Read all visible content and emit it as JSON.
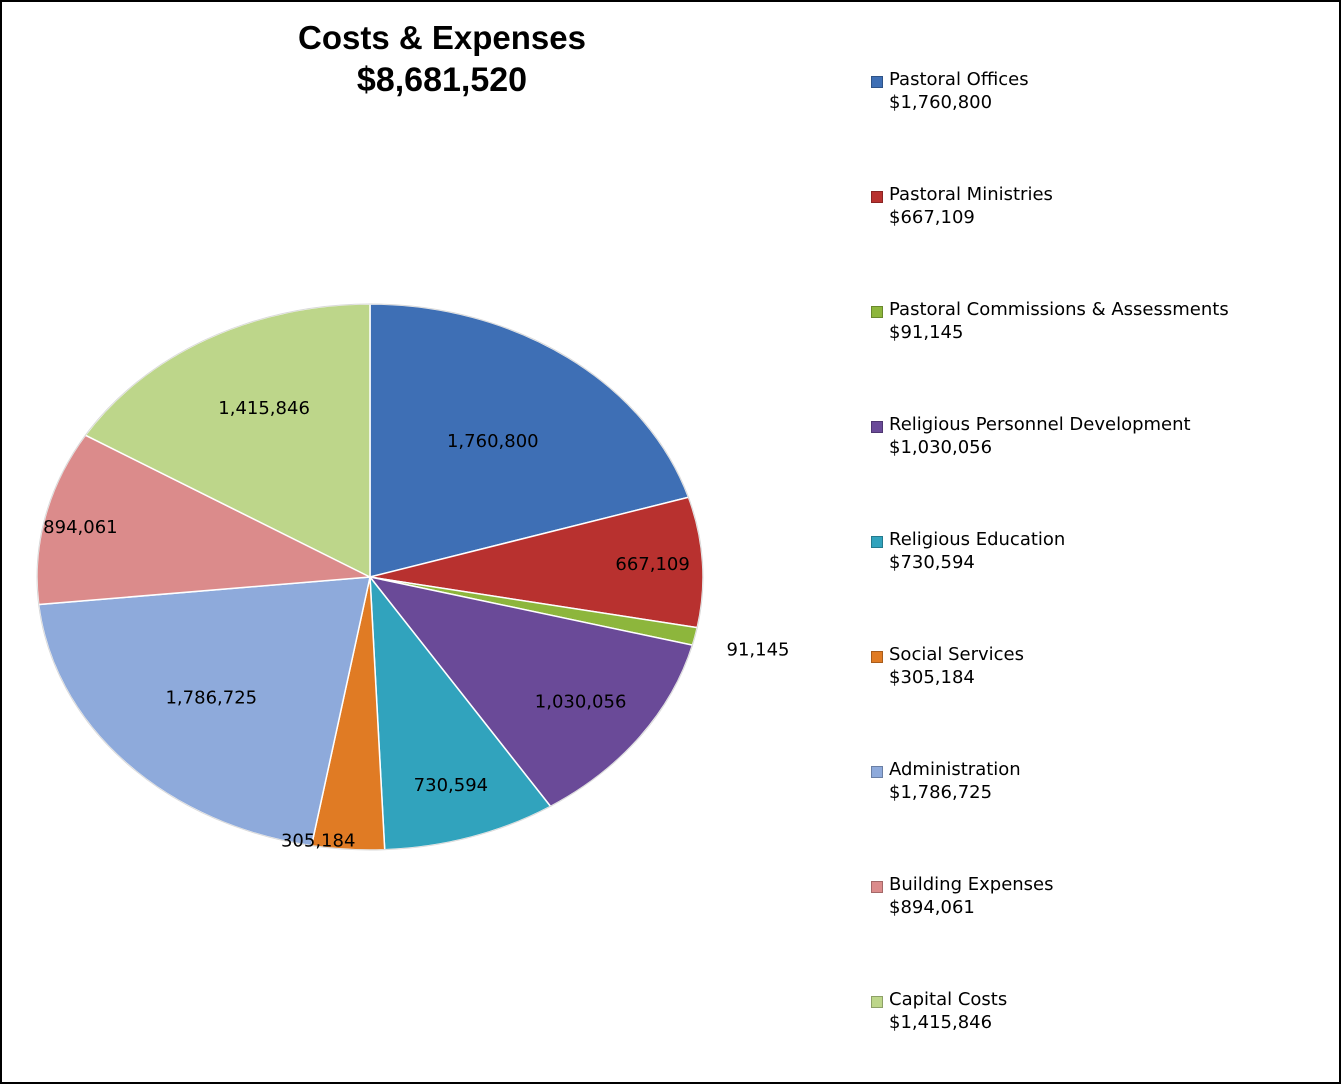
{
  "chart_data": {
    "type": "pie",
    "title": "Costs & Expenses",
    "subtitle": "$8,681,520",
    "legend_position": "right",
    "slices": [
      {
        "name": "Pastoral Offices",
        "value": 1760800,
        "label": "1,760,800",
        "legend_value": "$1,760,800",
        "color": "#3E6FB5"
      },
      {
        "name": "Pastoral Ministries",
        "value": 667109,
        "label": "667,109",
        "legend_value": "$667,109",
        "color": "#B8312F"
      },
      {
        "name": "Pastoral Commissions & Assessments",
        "value": 91145,
        "label": "91,145",
        "legend_value": "$91,145",
        "color": "#8DB63C"
      },
      {
        "name": "Religious Personnel Development",
        "value": 1030056,
        "label": "1,030,056",
        "legend_value": "$1,030,056",
        "color": "#6A4A98"
      },
      {
        "name": "Religious Education",
        "value": 730594,
        "label": "730,594",
        "legend_value": "$730,594",
        "color": "#31A3BD"
      },
      {
        "name": "Social Services",
        "value": 305184,
        "label": "305,184",
        "legend_value": "$305,184",
        "color": "#E07B24"
      },
      {
        "name": "Administration",
        "value": 1786725,
        "label": "1,786,725",
        "legend_value": "$1,786,725",
        "color": "#8EAADB"
      },
      {
        "name": "Building Expenses",
        "value": 894061,
        "label": "894,061",
        "legend_value": "$894,061",
        "color": "#DB8B8B"
      },
      {
        "name": "Capital Costs",
        "value": 1415846,
        "label": "1,415,846",
        "legend_value": "$1,415,846",
        "color": "#BDD68A"
      }
    ]
  }
}
